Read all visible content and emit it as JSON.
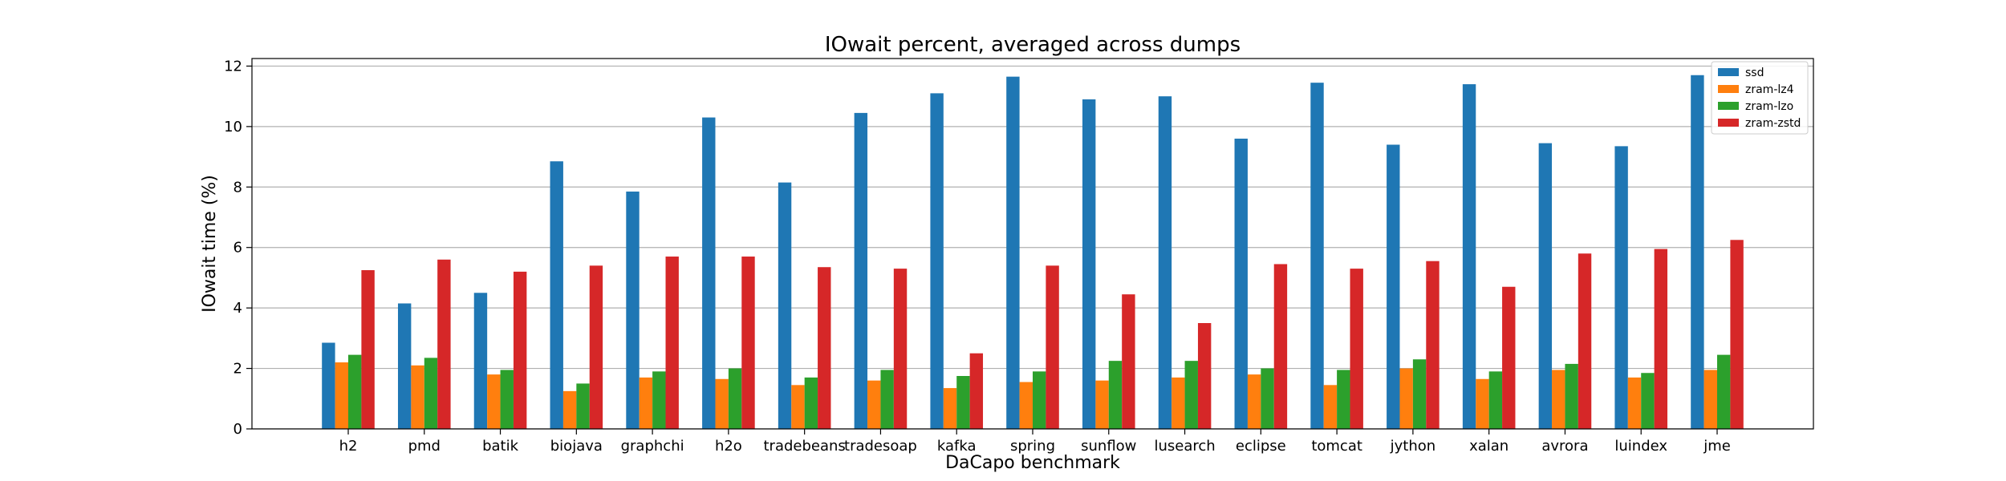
{
  "chart_data": {
    "type": "bar",
    "title": "IOwait percent, averaged across dumps",
    "xlabel": "DaCapo benchmark",
    "ylabel": "IOwait time (%)",
    "ylim": [
      0,
      12.25
    ],
    "yticks": [
      0,
      2,
      4,
      6,
      8,
      10,
      12
    ],
    "grid": "y",
    "legend_position": "top-right",
    "categories": [
      "h2",
      "pmd",
      "batik",
      "biojava",
      "graphchi",
      "h2o",
      "tradebeans",
      "tradesoap",
      "kafka",
      "spring",
      "sunflow",
      "lusearch",
      "eclipse",
      "tomcat",
      "jython",
      "xalan",
      "avrora",
      "luindex",
      "jme"
    ],
    "series": [
      {
        "name": "ssd",
        "color": "#1f77b4",
        "values": [
          2.85,
          4.15,
          4.5,
          8.85,
          7.85,
          10.3,
          8.15,
          10.45,
          11.1,
          11.65,
          10.9,
          11.0,
          9.6,
          11.45,
          9.4,
          11.4,
          9.45,
          9.35,
          11.7
        ]
      },
      {
        "name": "zram-lz4",
        "color": "#ff7f0e",
        "values": [
          2.2,
          2.1,
          1.8,
          1.25,
          1.7,
          1.65,
          1.45,
          1.6,
          1.35,
          1.55,
          1.6,
          1.7,
          1.8,
          1.45,
          2.0,
          1.65,
          1.95,
          1.7,
          1.95
        ]
      },
      {
        "name": "zram-lzo",
        "color": "#2ca02c",
        "values": [
          2.45,
          2.35,
          1.95,
          1.5,
          1.9,
          2.0,
          1.7,
          1.95,
          1.75,
          1.9,
          2.25,
          2.25,
          2.0,
          1.95,
          2.3,
          1.9,
          2.15,
          1.85,
          2.45
        ]
      },
      {
        "name": "zram-zstd",
        "color": "#d62728",
        "values": [
          5.25,
          5.6,
          5.2,
          5.4,
          5.7,
          5.7,
          5.35,
          5.3,
          2.5,
          5.4,
          4.45,
          3.5,
          5.45,
          5.3,
          5.55,
          4.7,
          5.8,
          5.95,
          6.25
        ]
      }
    ]
  }
}
